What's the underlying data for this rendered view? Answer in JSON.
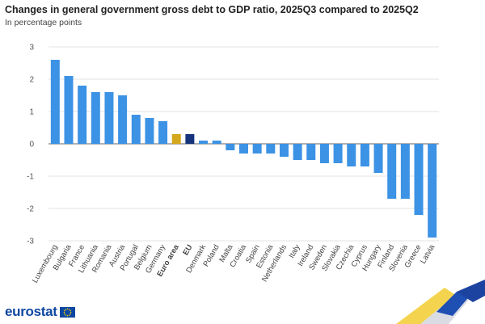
{
  "title": "Changes in general government gross debt to GDP ratio, 2025Q3 compared to 2025Q2",
  "subtitle": "In percentage points",
  "logo_text": "eurostat",
  "colors": {
    "country": "#3c92e4",
    "euro_area": "#d4a71d",
    "eu": "#14337c",
    "axis_text": "#555555",
    "gridline": "#e3e3e3",
    "zero_line": "#666666"
  },
  "chart_data": {
    "type": "bar",
    "title": "Changes in general government gross debt to GDP ratio, 2025Q3 compared to 2025Q2",
    "subtitle": "In percentage points",
    "categories": [
      "Luxembourg",
      "Bulgaria",
      "France",
      "Lithuania",
      "Romania",
      "Austria",
      "Portugal",
      "Belgium",
      "Germany",
      "Euro area",
      "EU",
      "Denmark",
      "Poland",
      "Malta",
      "Croatia",
      "Spain",
      "Estonia",
      "Netherlands",
      "Italy",
      "Ireland",
      "Sweden",
      "Slovakia",
      "Czechia",
      "Cyprus",
      "Hungary",
      "Finland",
      "Slovenia",
      "Greece",
      "Latvia"
    ],
    "values": [
      2.6,
      2.1,
      1.8,
      1.6,
      1.6,
      1.5,
      0.9,
      0.8,
      0.7,
      0.3,
      0.3,
      0.1,
      0.1,
      -0.2,
      -0.3,
      -0.3,
      -0.3,
      -0.4,
      -0.5,
      -0.5,
      -0.6,
      -0.6,
      -0.7,
      -0.7,
      -0.9,
      -1.7,
      -1.7,
      -2.2,
      -2.9
    ],
    "highlight": {
      "Euro area": "euro_area",
      "EU": "eu"
    },
    "bold_categories": [
      "Euro area",
      "EU"
    ],
    "ylim": [
      -3,
      3
    ],
    "yticks": [
      3,
      2,
      1,
      0,
      -1,
      -2,
      -3
    ],
    "grid": true,
    "legend": "none",
    "xlabel": "",
    "ylabel": ""
  }
}
